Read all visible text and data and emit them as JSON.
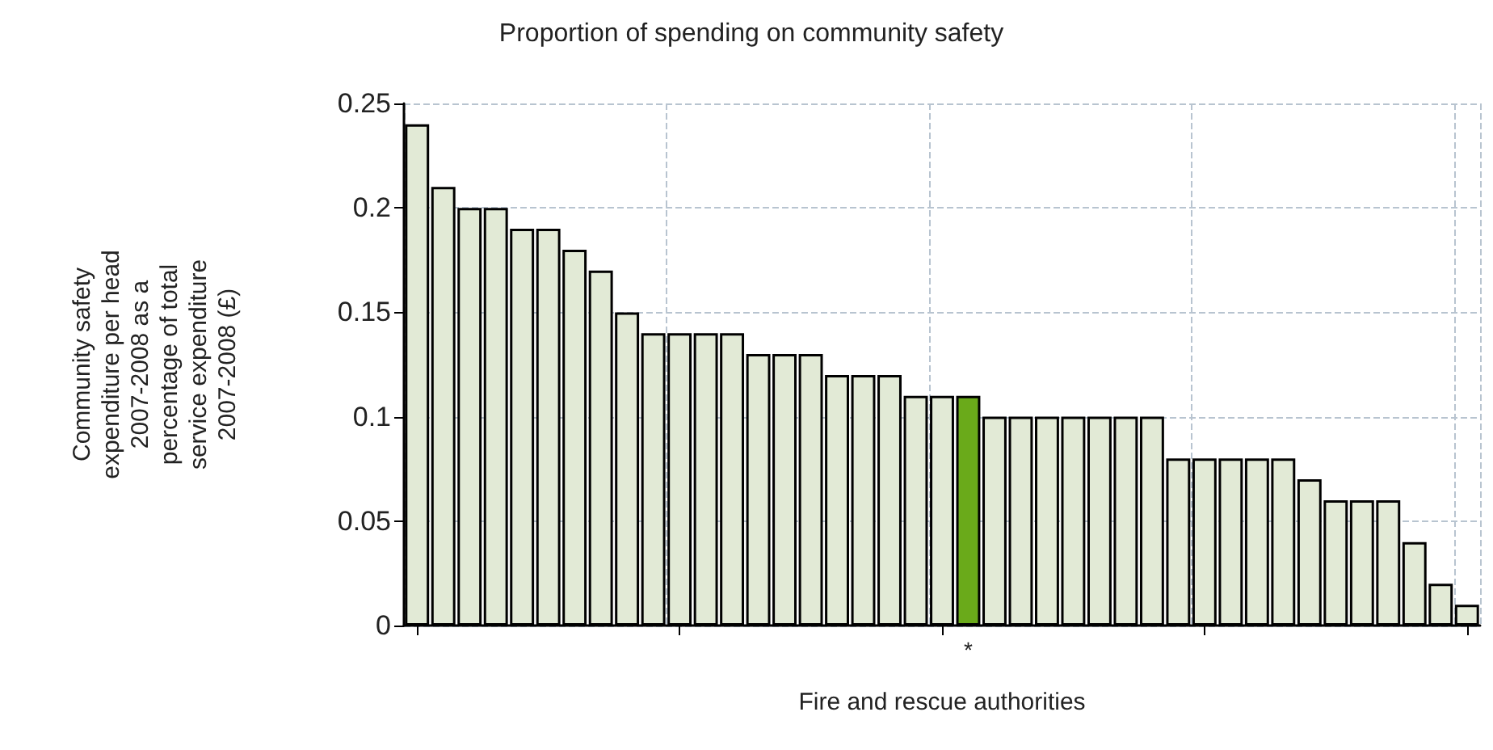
{
  "chart_data": {
    "type": "bar",
    "title": "Proportion of spending on community safety",
    "xlabel": "Fire and rescue authorities",
    "ylabel": "Community safety\nexpenditure per head\n2007-2008 as a\npercentage of total\nservice expenditure\n2007-2008 (£)",
    "categories": [
      null,
      null,
      null,
      null,
      null,
      null,
      null,
      null,
      null,
      null,
      null,
      null,
      null,
      null,
      null,
      null,
      null,
      null,
      null,
      null,
      null,
      "*",
      null,
      null,
      null,
      null,
      null,
      null,
      null,
      null,
      null,
      null,
      null,
      null,
      null,
      null,
      null,
      null,
      null,
      null,
      null
    ],
    "values": [
      0.24,
      0.21,
      0.2,
      0.2,
      0.19,
      0.19,
      0.18,
      0.17,
      0.15,
      0.14,
      0.14,
      0.14,
      0.14,
      0.13,
      0.13,
      0.13,
      0.12,
      0.12,
      0.12,
      0.11,
      0.11,
      0.11,
      0.1,
      0.1,
      0.1,
      0.1,
      0.1,
      0.1,
      0.1,
      0.08,
      0.08,
      0.08,
      0.08,
      0.08,
      0.07,
      0.06,
      0.06,
      0.06,
      0.04,
      0.02,
      0.01
    ],
    "colors": [
      "#e2ead6",
      "#e2ead6",
      "#e2ead6",
      "#e2ead6",
      "#e2ead6",
      "#e2ead6",
      "#e2ead6",
      "#e2ead6",
      "#e2ead6",
      "#e2ead6",
      "#e2ead6",
      "#e2ead6",
      "#e2ead6",
      "#e2ead6",
      "#e2ead6",
      "#e2ead6",
      "#e2ead6",
      "#e2ead6",
      "#e2ead6",
      "#e2ead6",
      "#e2ead6",
      "#6aaa1a",
      "#e2ead6",
      "#e2ead6",
      "#e2ead6",
      "#e2ead6",
      "#e2ead6",
      "#e2ead6",
      "#e2ead6",
      "#e2ead6",
      "#e2ead6",
      "#e2ead6",
      "#e2ead6",
      "#e2ead6",
      "#e2ead6",
      "#e2ead6",
      "#e2ead6",
      "#e2ead6",
      "#e2ead6",
      "#e2ead6",
      "#e2ead6"
    ],
    "ylim": [
      0,
      0.25
    ],
    "yticks": [
      0,
      0.05,
      0.1,
      0.15,
      0.2,
      0.25
    ],
    "grid": true
  }
}
